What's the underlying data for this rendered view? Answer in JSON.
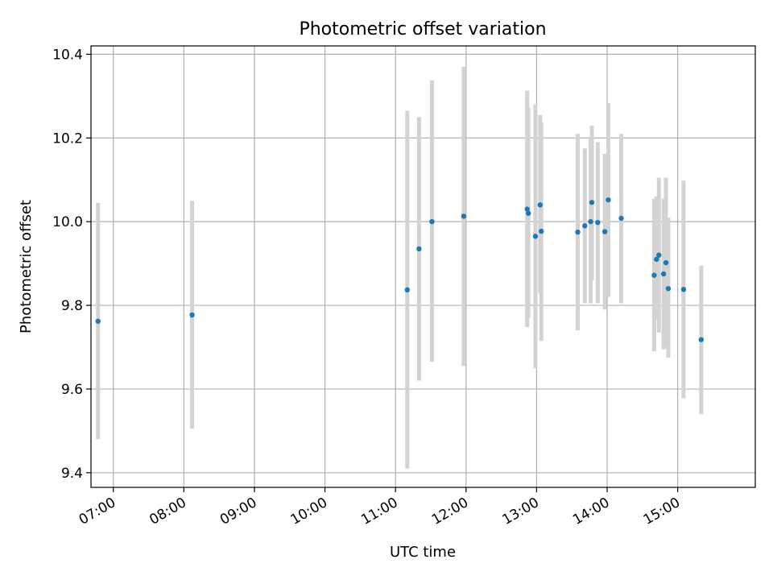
{
  "chart_data": {
    "type": "scatter",
    "title": "Photometric offset variation",
    "xlabel": "UTC time",
    "ylabel": "Photometric offset",
    "xlim": [
      "06:41",
      "16:06"
    ],
    "ylim": [
      9.365,
      10.42
    ],
    "x_ticks": [
      "07:00",
      "08:00",
      "09:00",
      "10:00",
      "11:00",
      "12:00",
      "13:00",
      "14:00",
      "15:00"
    ],
    "y_ticks": [
      "9.4",
      "9.6",
      "9.8",
      "10.0",
      "10.2",
      "10.4"
    ],
    "grid": true,
    "colors": {
      "point": "#1f77b4",
      "errorbar": "#d3d3d3",
      "grid": "#b0b0b0"
    },
    "points": [
      {
        "x": "06:47",
        "y": 9.762,
        "y_low": 9.48,
        "y_high": 10.045
      },
      {
        "x": "08:07",
        "y": 9.777,
        "y_low": 9.505,
        "y_high": 10.05
      },
      {
        "x": "11:10",
        "y": 9.837,
        "y_low": 9.41,
        "y_high": 10.265
      },
      {
        "x": "11:20",
        "y": 9.935,
        "y_low": 9.62,
        "y_high": 10.25
      },
      {
        "x": "11:31",
        "y": 10.0,
        "y_low": 9.665,
        "y_high": 10.338
      },
      {
        "x": "11:58",
        "y": 10.013,
        "y_low": 9.655,
        "y_high": 10.37
      },
      {
        "x": "12:52",
        "y": 10.03,
        "y_low": 9.748,
        "y_high": 10.313
      },
      {
        "x": "12:53",
        "y": 10.02,
        "y_low": 9.77,
        "y_high": 10.272
      },
      {
        "x": "12:59",
        "y": 9.965,
        "y_low": 9.65,
        "y_high": 10.28
      },
      {
        "x": "13:03",
        "y": 10.04,
        "y_low": 9.83,
        "y_high": 10.255
      },
      {
        "x": "13:04",
        "y": 9.977,
        "y_low": 9.715,
        "y_high": 10.237
      },
      {
        "x": "13:35",
        "y": 9.975,
        "y_low": 9.74,
        "y_high": 10.21
      },
      {
        "x": "13:41",
        "y": 9.99,
        "y_low": 9.805,
        "y_high": 10.175
      },
      {
        "x": "13:46",
        "y": 10.0,
        "y_low": 9.805,
        "y_high": 10.2
      },
      {
        "x": "13:47",
        "y": 10.046,
        "y_low": 9.86,
        "y_high": 10.23
      },
      {
        "x": "13:52",
        "y": 9.998,
        "y_low": 9.805,
        "y_high": 10.19
      },
      {
        "x": "13:58",
        "y": 9.976,
        "y_low": 9.79,
        "y_high": 10.162
      },
      {
        "x": "14:01",
        "y": 10.052,
        "y_low": 9.82,
        "y_high": 10.283
      },
      {
        "x": "14:12",
        "y": 10.008,
        "y_low": 9.805,
        "y_high": 10.21
      },
      {
        "x": "14:40",
        "y": 9.872,
        "y_low": 9.69,
        "y_high": 10.055
      },
      {
        "x": "14:42",
        "y": 9.91,
        "y_low": 9.765,
        "y_high": 10.06
      },
      {
        "x": "14:44",
        "y": 9.92,
        "y_low": 9.735,
        "y_high": 10.105
      },
      {
        "x": "14:48",
        "y": 9.875,
        "y_low": 9.695,
        "y_high": 10.055
      },
      {
        "x": "14:50",
        "y": 9.902,
        "y_low": 9.7,
        "y_high": 10.105
      },
      {
        "x": "14:52",
        "y": 9.84,
        "y_low": 9.675,
        "y_high": 10.01
      },
      {
        "x": "15:05",
        "y": 9.838,
        "y_low": 9.578,
        "y_high": 10.098
      },
      {
        "x": "15:20",
        "y": 9.718,
        "y_low": 9.54,
        "y_high": 9.895
      }
    ]
  }
}
